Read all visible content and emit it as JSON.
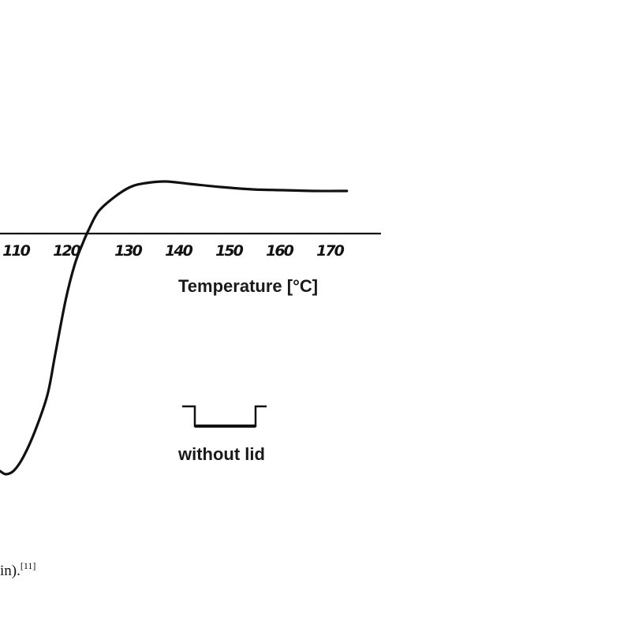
{
  "chart_data": {
    "type": "line",
    "title": "",
    "xlabel": "Temperature [°C]",
    "ylabel": "",
    "xticks": [
      110,
      120,
      130,
      140,
      150,
      160,
      170
    ],
    "xlim": [
      104.7,
      179
    ],
    "ylim": [
      -32,
      30
    ],
    "grid": false,
    "legend": {
      "label": "without lid",
      "placement": "bottom-right"
    },
    "series": [
      {
        "name": "without lid",
        "x": [
          104.7,
          105.9,
          107.5,
          109.4,
          111.7,
          114.1,
          115.6,
          117.7,
          119.5,
          121.1,
          122.2,
          124.2,
          127.3,
          130.5,
          133.6,
          137.5,
          142.2,
          148.4,
          154.7,
          160.9,
          167.2,
          173.4
        ],
        "y": [
          -30.1,
          -30.5,
          -30.0,
          -28.2,
          -24.9,
          -20.4,
          -15.4,
          -8.4,
          -3.9,
          -1.2,
          0.4,
          2.8,
          4.6,
          5.9,
          6.4,
          6.6,
          6.3,
          5.9,
          5.6,
          5.5,
          5.4,
          5.4
        ]
      }
    ]
  },
  "caption": {
    "text": "in).",
    "ref": "[11]"
  }
}
